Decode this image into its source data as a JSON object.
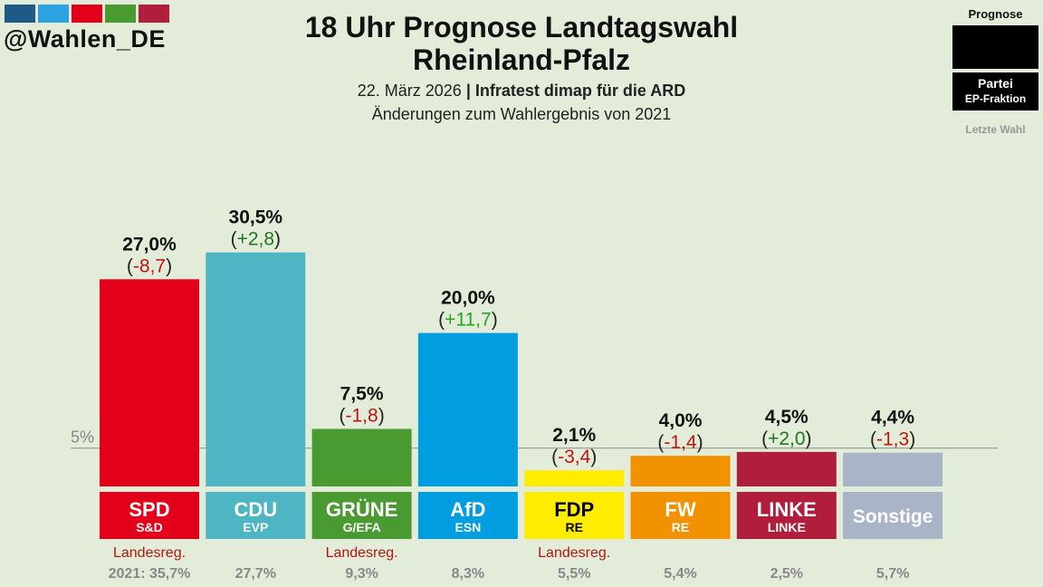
{
  "brand": {
    "handle": "@Wahlen_DE",
    "logo_colors": [
      "#1d5a86",
      "#2aa3e0",
      "#e3001b",
      "#4a9a32",
      "#b01e3c"
    ]
  },
  "header": {
    "title_line1": "18 Uhr Prognose Landtagswahl",
    "title_line2": "Rheinland-Pfalz",
    "date": "22. März 2026",
    "separator": "|",
    "source": "Infratest dimap für die ARD",
    "subtitle": "Änderungen zum Wahlergebnis von 2021"
  },
  "legend": {
    "title": "Prognose",
    "party_label": "Partei",
    "faction_label": "EP-Fraktion",
    "last_label": "Letzte Wahl"
  },
  "chart_data": {
    "type": "bar",
    "title": "18 Uhr Prognose Landtagswahl Rheinland-Pfalz",
    "ylim": [
      0,
      35
    ],
    "threshold": 5,
    "threshold_label": "5%",
    "parties": [
      {
        "name": "SPD",
        "faction": "S&D",
        "value": 27.0,
        "value_label": "27,0%",
        "change": "-8,7",
        "change_sign": "neg",
        "color": "#e3001b",
        "text_color": "#ffffff",
        "government": "Landesreg.",
        "previous": "2021: 35,7%"
      },
      {
        "name": "CDU",
        "faction": "EVP",
        "value": 30.5,
        "value_label": "30,5%",
        "change": "+2,8",
        "change_sign": "pos",
        "color": "#4db5c4",
        "text_color": "#ffffff",
        "government": "",
        "previous": "27,7%"
      },
      {
        "name": "GRÜNE",
        "faction": "G/EFA",
        "value": 7.5,
        "value_label": "7,5%",
        "change": "-1,8",
        "change_sign": "neg",
        "color": "#4a9a32",
        "text_color": "#ffffff",
        "government": "Landesreg.",
        "previous": "9,3%"
      },
      {
        "name": "AfD",
        "faction": "ESN",
        "value": 20.0,
        "value_label": "20,0%",
        "change": "+11,7",
        "change_sign": "pos_strong",
        "color": "#009ee0",
        "text_color": "#ffffff",
        "government": "",
        "previous": "8,3%"
      },
      {
        "name": "FDP",
        "faction": "RE",
        "value": 2.1,
        "value_label": "2,1%",
        "change": "-3,4",
        "change_sign": "neg",
        "color": "#ffed00",
        "text_color": "#000000",
        "government": "Landesreg.",
        "previous": "5,5%"
      },
      {
        "name": "FW",
        "faction": "RE",
        "value": 4.0,
        "value_label": "4,0%",
        "change": "-1,4",
        "change_sign": "neg",
        "color": "#f39200",
        "text_color": "#ffffff",
        "government": "",
        "previous": "5,4%"
      },
      {
        "name": "LINKE",
        "faction": "LINKE",
        "value": 4.5,
        "value_label": "4,5%",
        "change": "+2,0",
        "change_sign": "pos",
        "color": "#b01e3c",
        "text_color": "#ffffff",
        "government": "",
        "previous": "2,5%"
      },
      {
        "name": "Sonstige",
        "faction": "",
        "value": 4.4,
        "value_label": "4,4%",
        "change": "-1,3",
        "change_sign": "neg",
        "color": "#aab4c8",
        "text_color": "#ffffff",
        "government": "",
        "previous": "5,7%"
      }
    ],
    "change_colors": {
      "neg": "#c0140e",
      "pos": "#1e7a1e",
      "pos_strong": "#22a722",
      "paren": "#222222"
    },
    "government_color": "#b0170f",
    "previous_color": "#888888"
  }
}
